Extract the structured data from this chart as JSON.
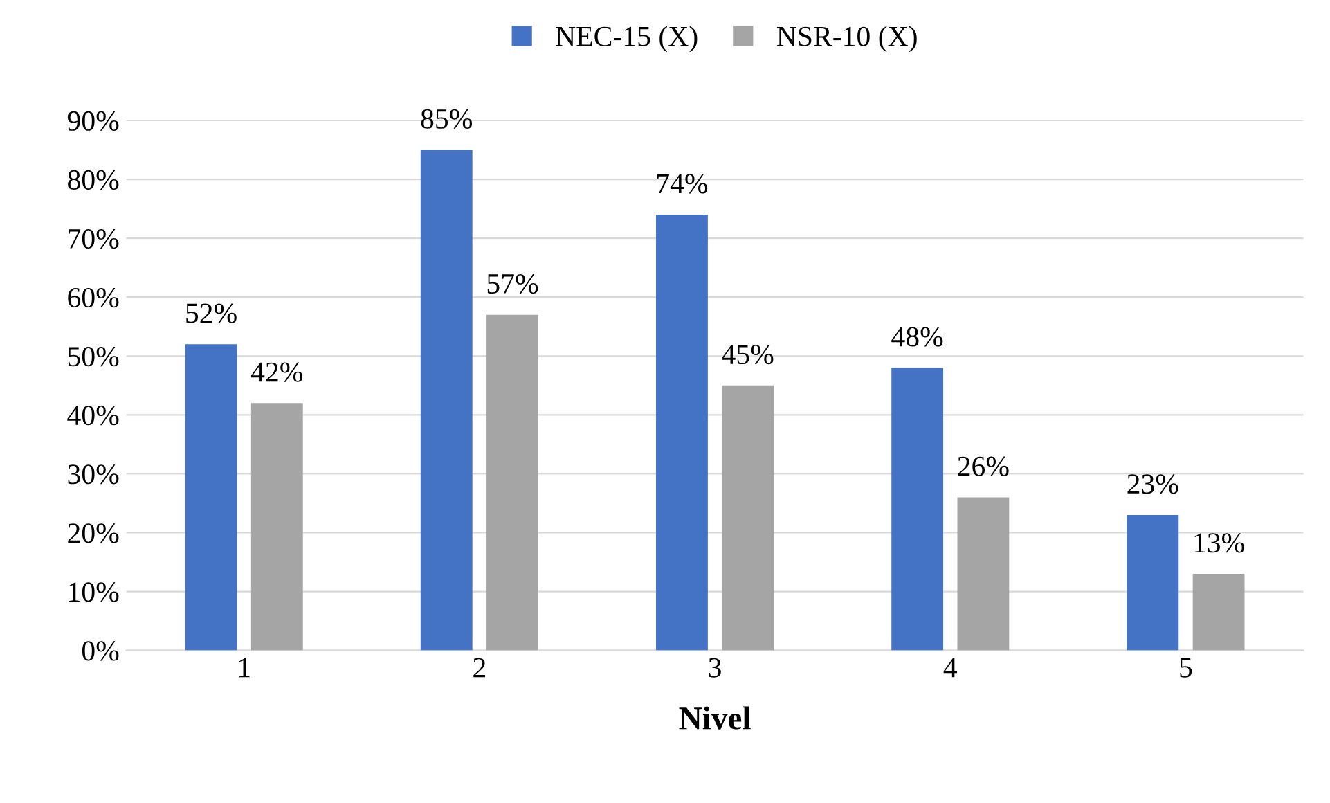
{
  "chart_data": {
    "type": "bar",
    "xlabel": "Nivel",
    "categories": [
      "1",
      "2",
      "3",
      "4",
      "5"
    ],
    "series": [
      {
        "name": "NEC-15 (X)",
        "color": "#4472c4",
        "values": [
          52,
          85,
          74,
          48,
          23
        ],
        "value_labels": [
          "52%",
          "85%",
          "74%",
          "48%",
          "23%"
        ]
      },
      {
        "name": "NSR-10 (X)",
        "color": "#a5a5a5",
        "values": [
          42,
          57,
          45,
          26,
          13
        ],
        "value_labels": [
          "42%",
          "57%",
          "45%",
          "26%",
          "13%"
        ]
      }
    ],
    "ylim": [
      0,
      90
    ],
    "yticks": [
      {
        "value": 0,
        "label": "0%"
      },
      {
        "value": 10,
        "label": "10%"
      },
      {
        "value": 20,
        "label": "20%"
      },
      {
        "value": 30,
        "label": "30%"
      },
      {
        "value": 40,
        "label": "40%"
      },
      {
        "value": 50,
        "label": "50%"
      },
      {
        "value": 60,
        "label": "60%"
      },
      {
        "value": 70,
        "label": "70%"
      },
      {
        "value": 80,
        "label": "80%"
      },
      {
        "value": 90,
        "label": "90%"
      }
    ],
    "grid": "y",
    "legend": "top"
  }
}
